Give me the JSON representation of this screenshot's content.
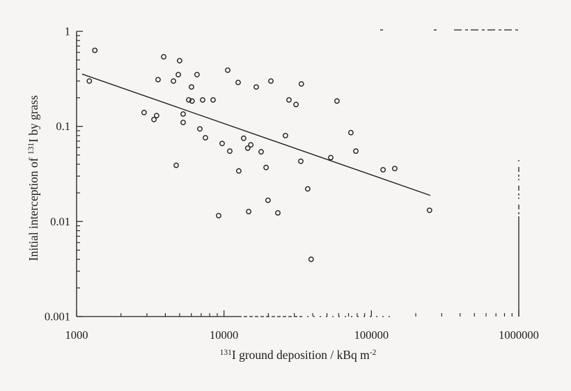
{
  "figure": {
    "background_color": "#f6f5f3",
    "ink_color": "#1d1d1d",
    "kind": "scanned scatter plot figure"
  },
  "chart_data": {
    "type": "scatter",
    "title": "",
    "xlabel": "131I ground deposition / kBq m-2",
    "ylabel": "Initial interception of 131I by grass",
    "xlabel_parts": {
      "sup_prefix": "131",
      "main": "I ground deposition / kBq m",
      "sup_suffix": "-2"
    },
    "ylabel_parts": {
      "prefix": "Initial interception of ",
      "sup": "131",
      "suffix": "I by grass"
    },
    "x_scale": "log",
    "y_scale": "log",
    "xlim": [
      1000,
      1000000
    ],
    "ylim": [
      0.001,
      1
    ],
    "grid": false,
    "legend": null,
    "marker": "open-circle",
    "x_ticks": [
      {
        "value": 1000,
        "label": "1000"
      },
      {
        "value": 10000,
        "label": "10000"
      },
      {
        "value": 100000,
        "label": "100000"
      },
      {
        "value": 1000000,
        "label": "1000000"
      }
    ],
    "y_ticks": [
      {
        "value": 1,
        "label": "1"
      },
      {
        "value": 0.1,
        "label": "0.1"
      },
      {
        "value": 0.01,
        "label": "0.01"
      },
      {
        "value": 0.001,
        "label": "0.001"
      }
    ],
    "points": [
      [
        1330,
        0.63
      ],
      [
        1220,
        0.3
      ],
      [
        3900,
        0.54
      ],
      [
        5000,
        0.49
      ],
      [
        3570,
        0.31
      ],
      [
        4540,
        0.3
      ],
      [
        4900,
        0.35
      ],
      [
        6560,
        0.35
      ],
      [
        6020,
        0.26
      ],
      [
        10600,
        0.39
      ],
      [
        5760,
        0.19
      ],
      [
        6070,
        0.185
      ],
      [
        7160,
        0.19
      ],
      [
        8430,
        0.19
      ],
      [
        2870,
        0.14
      ],
      [
        3490,
        0.13
      ],
      [
        3350,
        0.118
      ],
      [
        5280,
        0.135
      ],
      [
        5280,
        0.11
      ],
      [
        6860,
        0.094
      ],
      [
        7480,
        0.076
      ],
      [
        9710,
        0.066
      ],
      [
        10950,
        0.055
      ],
      [
        4740,
        0.039
      ],
      [
        12470,
        0.29
      ],
      [
        16550,
        0.26
      ],
      [
        20800,
        0.3
      ],
      [
        33500,
        0.28
      ],
      [
        27600,
        0.19
      ],
      [
        30800,
        0.17
      ],
      [
        58400,
        0.185
      ],
      [
        26100,
        0.08
      ],
      [
        13600,
        0.075
      ],
      [
        14500,
        0.059
      ],
      [
        15200,
        0.064
      ],
      [
        17860,
        0.054
      ],
      [
        72600,
        0.086
      ],
      [
        78400,
        0.055
      ],
      [
        33200,
        0.043
      ],
      [
        53000,
        0.047
      ],
      [
        19300,
        0.037
      ],
      [
        12600,
        0.034
      ],
      [
        120000,
        0.035
      ],
      [
        144000,
        0.036
      ],
      [
        19900,
        0.0167
      ],
      [
        14700,
        0.0127
      ],
      [
        9200,
        0.0115
      ],
      [
        23200,
        0.0123
      ],
      [
        37000,
        0.022
      ],
      [
        248000,
        0.0131
      ],
      [
        39000,
        0.004
      ]
    ],
    "trendline": {
      "x1": 1090,
      "y1": 0.355,
      "x2": 251000,
      "y2": 0.0188
    }
  }
}
